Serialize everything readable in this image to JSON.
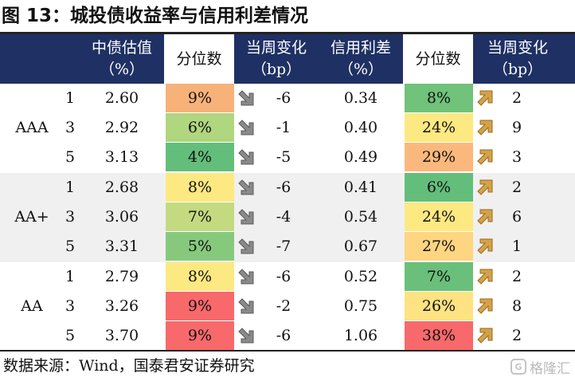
{
  "title": "图 13：城投债收益率与信用利差情况",
  "headers": {
    "valuation": [
      "中债估值",
      "（%）"
    ],
    "percentile_1": "分位数",
    "change_1": [
      "当周变化",
      "（bp）"
    ],
    "spread": [
      "信用利差",
      "（%）"
    ],
    "percentile_2": "分位数",
    "change_2": [
      "当周变化",
      "（bp）"
    ]
  },
  "groups": [
    {
      "label": "AAA",
      "rows": [
        {
          "term": "1",
          "valuation": "2.60",
          "pct1": "9%",
          "pct1_color": "#f7b27a",
          "change1": "-6",
          "spread": "0.34",
          "pct2": "8%",
          "pct2_color": "#71c27a",
          "change2": "2"
        },
        {
          "term": "3",
          "valuation": "2.92",
          "pct1": "6%",
          "pct1_color": "#b0d67f",
          "change1": "-1",
          "spread": "0.40",
          "pct2": "24%",
          "pct2_color": "#fde982",
          "change2": "9"
        },
        {
          "term": "5",
          "valuation": "3.13",
          "pct1": "4%",
          "pct1_color": "#63be7b",
          "change1": "-5",
          "spread": "0.49",
          "pct2": "29%",
          "pct2_color": "#fbb87c",
          "change2": "3"
        }
      ]
    },
    {
      "label": "AA+",
      "rows": [
        {
          "term": "1",
          "valuation": "2.68",
          "pct1": "8%",
          "pct1_color": "#fde982",
          "change1": "-6",
          "spread": "0.41",
          "pct2": "6%",
          "pct2_color": "#63be7b",
          "change2": "2"
        },
        {
          "term": "3",
          "valuation": "3.06",
          "pct1": "7%",
          "pct1_color": "#c4da80",
          "change1": "-4",
          "spread": "0.54",
          "pct2": "24%",
          "pct2_color": "#fde982",
          "change2": "6"
        },
        {
          "term": "5",
          "valuation": "3.31",
          "pct1": "5%",
          "pct1_color": "#86c97d",
          "change1": "-7",
          "spread": "0.67",
          "pct2": "27%",
          "pct2_color": "#fed580",
          "change2": "1"
        }
      ]
    },
    {
      "label": "AA",
      "rows": [
        {
          "term": "1",
          "valuation": "2.79",
          "pct1": "8%",
          "pct1_color": "#fde982",
          "change1": "-6",
          "spread": "0.52",
          "pct2": "7%",
          "pct2_color": "#6ac07b",
          "change2": "2"
        },
        {
          "term": "3",
          "valuation": "3.26",
          "pct1": "9%",
          "pct1_color": "#f8696b",
          "change1": "-2",
          "spread": "0.75",
          "pct2": "26%",
          "pct2_color": "#fde382",
          "change2": "8"
        },
        {
          "term": "5",
          "valuation": "3.70",
          "pct1": "9%",
          "pct1_color": "#f8696b",
          "change1": "-6",
          "spread": "1.06",
          "pct2": "38%",
          "pct2_color": "#f8696b",
          "change2": "2"
        }
      ]
    }
  ],
  "icons": {
    "down": "arrow-down-right-icon",
    "up": "arrow-up-right-icon"
  },
  "colors": {
    "header_bg": "#1f3064",
    "down_arrow": "#8a8a8a",
    "up_arrow": "#d4a24a"
  },
  "source": "数据来源：Wind，国泰君安证券研究",
  "watermark": "格隆汇"
}
